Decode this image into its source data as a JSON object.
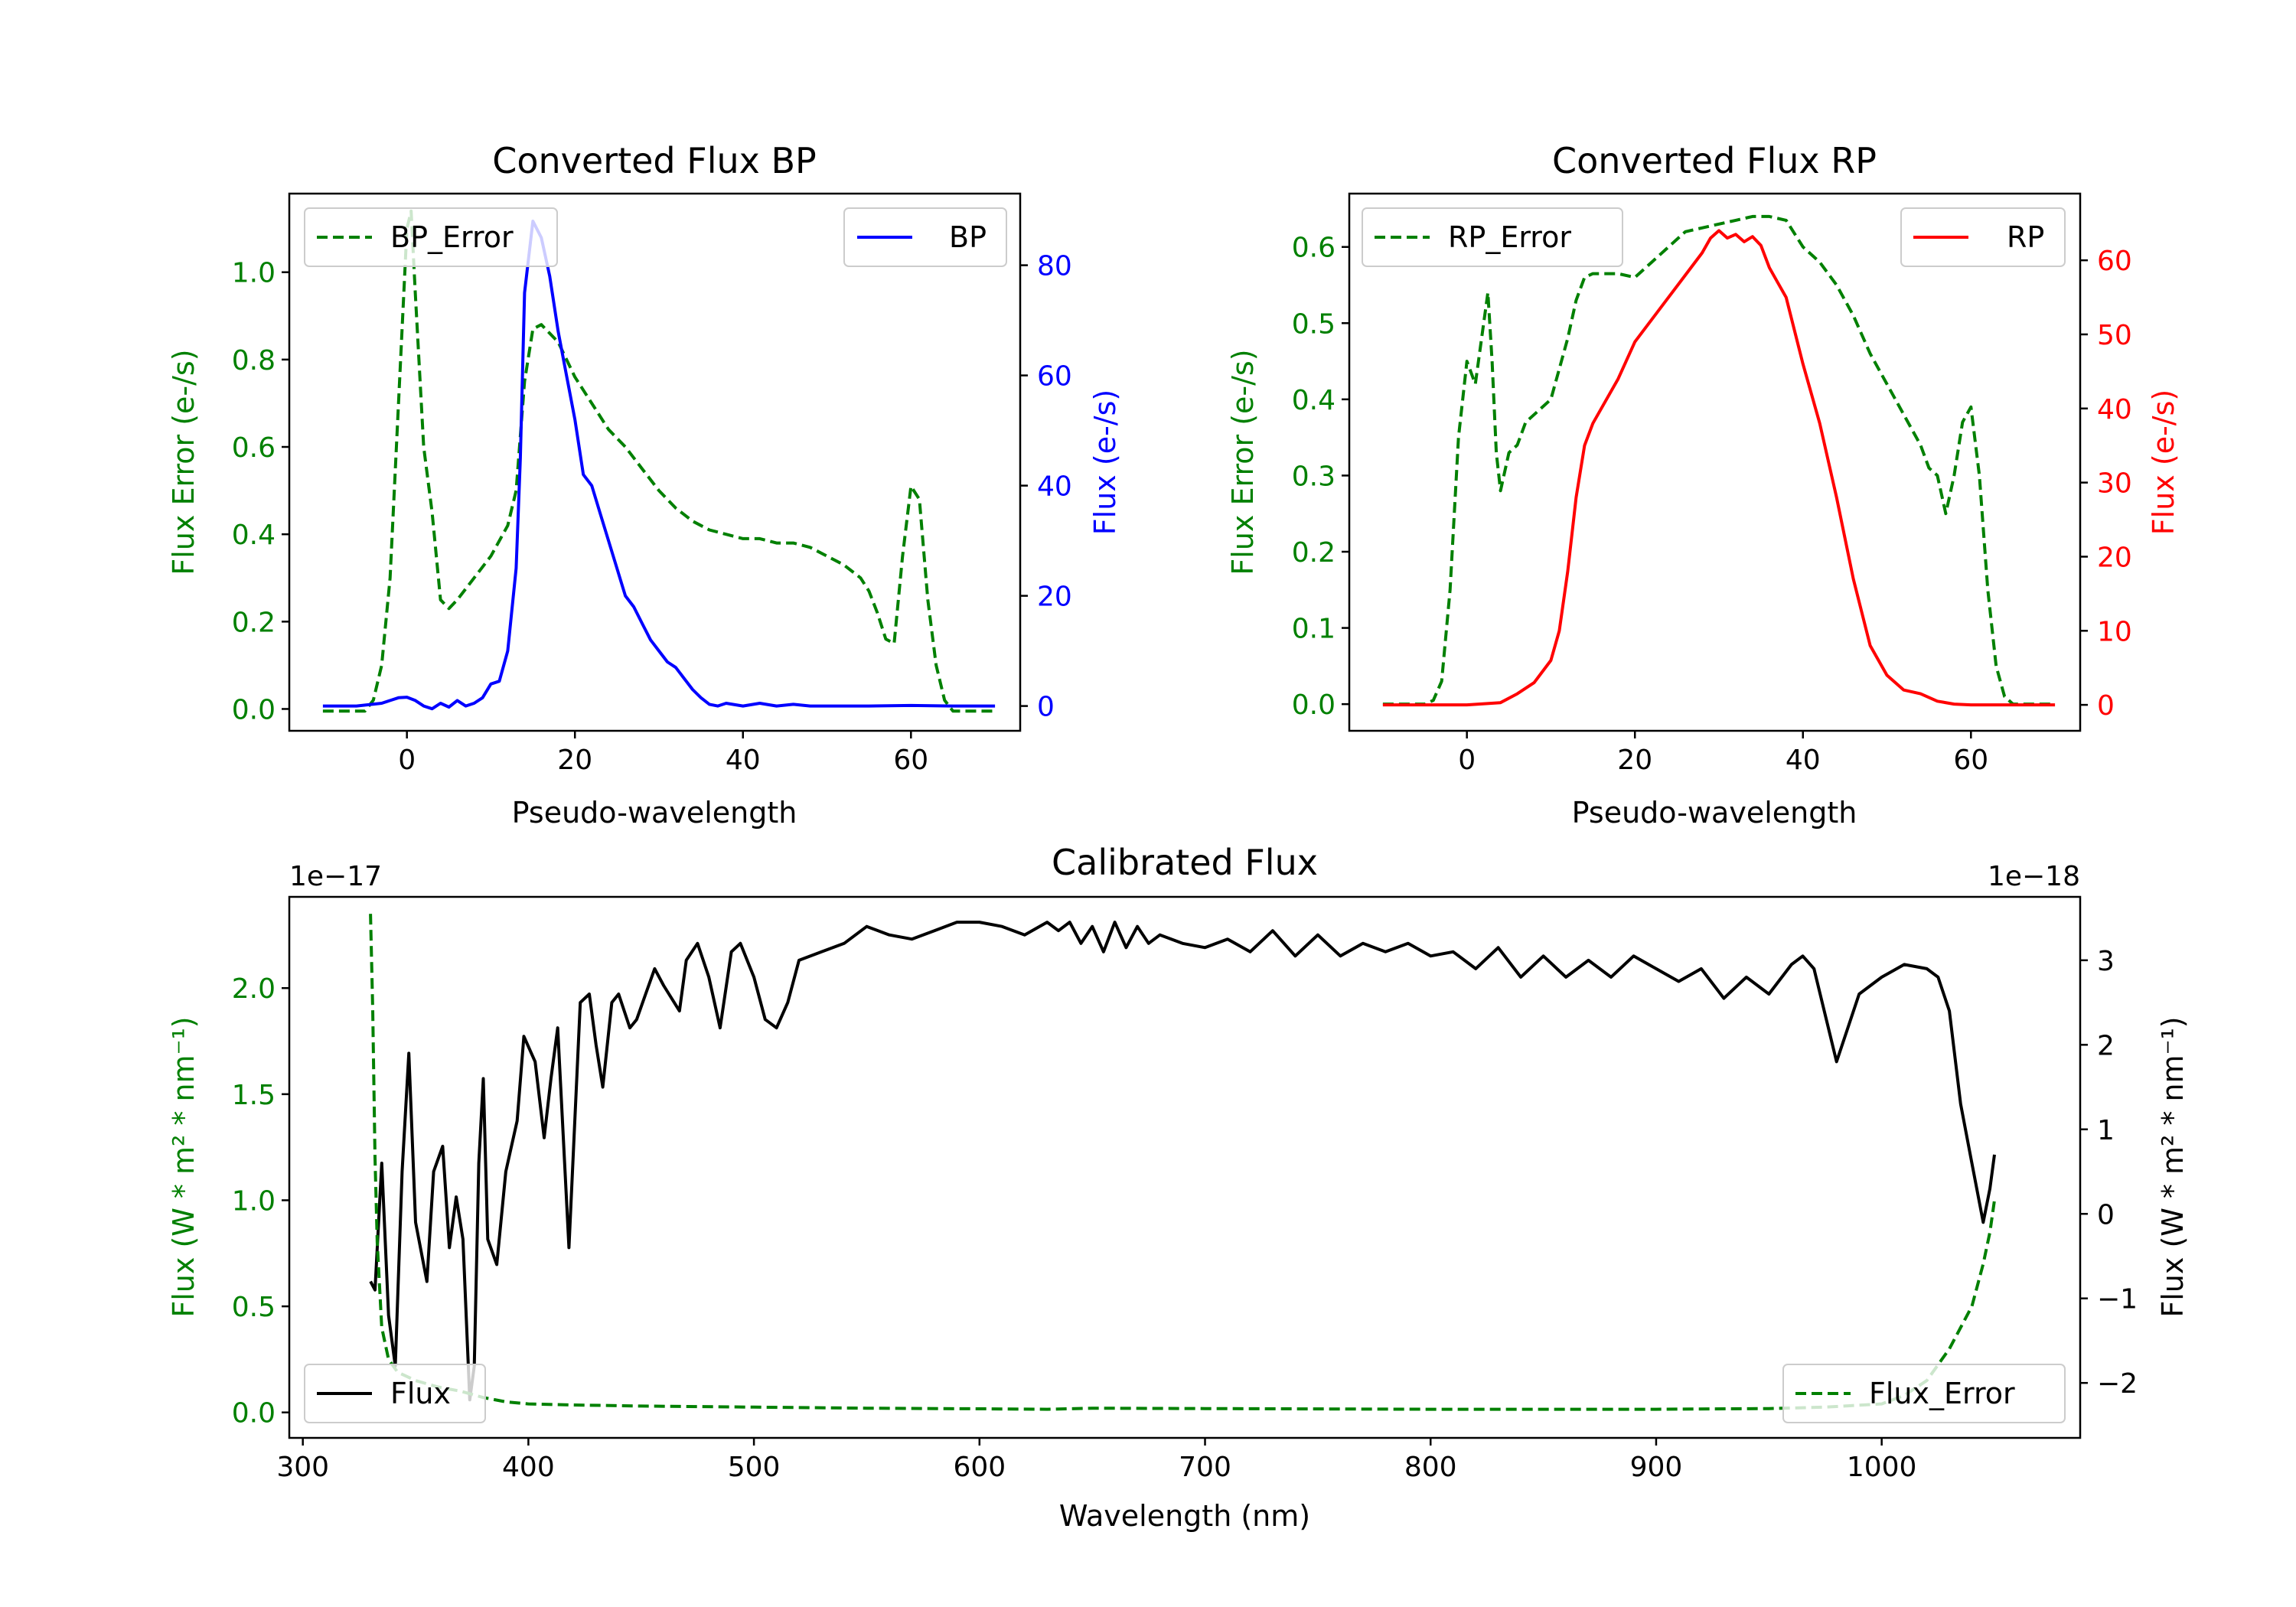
{
  "chart_data": [
    {
      "type": "line",
      "title": "Converted Flux BP",
      "xlabel": "Pseudo-wavelength",
      "xlim": [
        -14,
        73
      ],
      "xticks": [
        "0",
        "20",
        "40",
        "60"
      ],
      "left_axis": {
        "label": "Flux Error (e-/s)",
        "color": "#008000",
        "lim": [
          -0.05,
          1.18
        ],
        "ticks": [
          "0.0",
          "0.2",
          "0.4",
          "0.6",
          "0.8",
          "1.0"
        ]
      },
      "right_axis": {
        "label": "Flux (e-/s)",
        "color": "#0000ff",
        "lim": [
          -4.5,
          93
        ],
        "ticks": [
          "0",
          "20",
          "40",
          "60",
          "80"
        ]
      },
      "legend_left": "BP_Error",
      "legend_right": "BP",
      "series": [
        {
          "name": "BP_Error",
          "axis": "left",
          "style": "dashed",
          "color": "#008000",
          "x": [
            -10,
            -5,
            -4,
            -3,
            -2,
            -1,
            0,
            0.5,
            1,
            2,
            3,
            4,
            5,
            6,
            8,
            10,
            12,
            13,
            14,
            15,
            16,
            18,
            20,
            22,
            24,
            26,
            28,
            30,
            32,
            34,
            36,
            38,
            40,
            42,
            44,
            46,
            48,
            50,
            52,
            54,
            55,
            56,
            57,
            58,
            59,
            60,
            61,
            62,
            63,
            64,
            65,
            66,
            68,
            70
          ],
          "y": [
            -0.005,
            -0.005,
            0.02,
            0.1,
            0.3,
            0.7,
            1.1,
            1.14,
            0.95,
            0.6,
            0.45,
            0.25,
            0.23,
            0.25,
            0.3,
            0.35,
            0.42,
            0.5,
            0.75,
            0.87,
            0.88,
            0.84,
            0.76,
            0.7,
            0.64,
            0.6,
            0.55,
            0.5,
            0.46,
            0.43,
            0.41,
            0.4,
            0.39,
            0.39,
            0.38,
            0.38,
            0.37,
            0.35,
            0.33,
            0.3,
            0.27,
            0.22,
            0.16,
            0.15,
            0.35,
            0.51,
            0.48,
            0.25,
            0.1,
            0.02,
            -0.005,
            -0.005,
            -0.005,
            -0.005
          ]
        },
        {
          "name": "BP",
          "axis": "right",
          "style": "solid",
          "color": "#0000ff",
          "x": [
            -10,
            -6,
            -3,
            -1,
            0,
            1,
            2,
            3,
            4,
            5,
            6,
            7,
            8,
            9,
            10,
            11,
            12,
            13,
            13.5,
            14,
            15,
            16,
            17,
            18,
            19,
            20,
            21,
            22,
            23,
            24,
            25,
            26,
            27,
            28,
            29,
            30,
            31,
            32,
            33,
            34,
            35,
            36,
            37,
            38,
            40,
            42,
            44,
            46,
            48,
            50,
            55,
            60,
            65,
            70
          ],
          "y": [
            0,
            0,
            0.5,
            1.5,
            1.6,
            1,
            0,
            -0.5,
            0.5,
            -0.2,
            1,
            0,
            0.5,
            1.5,
            4,
            4.5,
            10,
            25,
            45,
            75,
            88,
            85,
            78,
            68,
            60,
            52,
            42,
            40,
            35,
            30,
            25,
            20,
            18,
            15,
            12,
            10,
            8,
            7,
            5,
            3,
            1.5,
            0.3,
            0,
            0.5,
            0,
            0.5,
            0,
            0.3,
            0,
            0,
            0,
            0.1,
            0,
            0
          ]
        }
      ]
    },
    {
      "type": "line",
      "title": "Converted Flux RP",
      "xlabel": "Pseudo-wavelength",
      "xlim": [
        -14,
        73
      ],
      "xticks": [
        "0",
        "20",
        "40",
        "60"
      ],
      "left_axis": {
        "label": "Flux Error (e-/s)",
        "color": "#008000",
        "lim": [
          -0.035,
          0.67
        ],
        "ticks": [
          "0.0",
          "0.1",
          "0.2",
          "0.3",
          "0.4",
          "0.5",
          "0.6"
        ]
      },
      "right_axis": {
        "label": "Flux (e-/s)",
        "color": "#ff0000",
        "lim": [
          -3.5,
          69
        ],
        "ticks": [
          "0",
          "10",
          "20",
          "30",
          "40",
          "50",
          "60"
        ]
      },
      "legend_left": "RP_Error",
      "legend_right": "RP",
      "series": [
        {
          "name": "RP_Error",
          "axis": "left",
          "style": "dashed",
          "color": "#008000",
          "x": [
            -10,
            -5,
            -4,
            -3,
            -2,
            -1,
            0,
            1,
            2,
            2.5,
            3,
            3.5,
            4,
            5,
            6,
            7,
            8,
            10,
            12,
            13,
            14,
            15,
            16,
            18,
            20,
            22,
            24,
            26,
            28,
            30,
            32,
            34,
            36,
            38,
            40,
            42,
            44,
            46,
            48,
            50,
            52,
            54,
            55,
            56,
            57,
            58,
            59,
            60,
            61,
            62,
            63,
            64,
            65,
            70
          ],
          "y": [
            0,
            0,
            0.005,
            0.03,
            0.15,
            0.35,
            0.45,
            0.42,
            0.5,
            0.54,
            0.45,
            0.33,
            0.28,
            0.33,
            0.34,
            0.37,
            0.38,
            0.4,
            0.48,
            0.53,
            0.56,
            0.565,
            0.565,
            0.565,
            0.56,
            0.58,
            0.6,
            0.62,
            0.625,
            0.63,
            0.635,
            0.64,
            0.64,
            0.635,
            0.6,
            0.58,
            0.55,
            0.51,
            0.46,
            0.42,
            0.38,
            0.34,
            0.31,
            0.3,
            0.25,
            0.3,
            0.37,
            0.39,
            0.3,
            0.15,
            0.05,
            0.01,
            0,
            0
          ]
        },
        {
          "name": "RP",
          "axis": "right",
          "style": "solid",
          "color": "#ff0000",
          "x": [
            -10,
            0,
            4,
            6,
            8,
            10,
            11,
            12,
            13,
            14,
            15,
            16,
            18,
            20,
            22,
            24,
            26,
            28,
            29,
            30,
            31,
            32,
            33,
            34,
            35,
            36,
            37,
            38,
            40,
            42,
            44,
            46,
            48,
            50,
            52,
            54,
            56,
            58,
            60,
            62,
            70
          ],
          "y": [
            0,
            0,
            0.3,
            1.5,
            3,
            6,
            10,
            18,
            28,
            35,
            38,
            40,
            44,
            49,
            52,
            55,
            58,
            61,
            63,
            64,
            63,
            63.5,
            62.5,
            63.2,
            62,
            59,
            57,
            55,
            46,
            38,
            28,
            17,
            8,
            4,
            2,
            1.5,
            0.5,
            0.1,
            0,
            0,
            0
          ]
        }
      ]
    },
    {
      "type": "line",
      "title": "Calibrated Flux",
      "xlabel": "Wavelength (nm)",
      "xlim": [
        294,
        1088
      ],
      "xticks": [
        "300",
        "400",
        "500",
        "600",
        "700",
        "800",
        "900",
        "1000"
      ],
      "left_axis": {
        "label": "Flux (W * m² * nm⁻¹)",
        "color": "#008000",
        "lim": [
          -0.12,
          2.43
        ],
        "ticks": [
          "0.0",
          "0.5",
          "1.0",
          "1.5",
          "2.0"
        ],
        "offset_text": "1e−17"
      },
      "right_axis": {
        "label": "Flux (W * m² * nm⁻¹)",
        "color": "#000000",
        "lim": [
          -2.65,
          3.75
        ],
        "ticks": [
          "−2",
          "−1",
          "0",
          "1",
          "2",
          "3"
        ],
        "offset_text": "1e−18"
      },
      "legend_left": "Flux",
      "legend_right": "Flux_Error",
      "series": [
        {
          "name": "Flux",
          "axis": "right",
          "style": "solid",
          "color": "#000000",
          "x": [
            330,
            332,
            335,
            338,
            341,
            344,
            347,
            350,
            355,
            358,
            362,
            365,
            368,
            371,
            374,
            376,
            378,
            380,
            382,
            386,
            390,
            395,
            398,
            403,
            407,
            410,
            413,
            418,
            423,
            427,
            430,
            433,
            437,
            440,
            445,
            448,
            452,
            456,
            460,
            467,
            470,
            475,
            480,
            485,
            490,
            494,
            500,
            505,
            510,
            515,
            520,
            530,
            540,
            550,
            560,
            570,
            580,
            590,
            600,
            610,
            620,
            630,
            635,
            640,
            645,
            650,
            655,
            660,
            665,
            670,
            675,
            680,
            690,
            700,
            710,
            720,
            730,
            740,
            750,
            760,
            770,
            780,
            790,
            800,
            810,
            820,
            830,
            840,
            850,
            860,
            870,
            880,
            890,
            900,
            910,
            920,
            930,
            940,
            950,
            960,
            965,
            970,
            980,
            990,
            1000,
            1010,
            1020,
            1025,
            1030,
            1035,
            1040,
            1045,
            1048,
            1050
          ],
          "y": [
            -0.8,
            -0.9,
            0.6,
            -1.2,
            -1.8,
            0.5,
            1.9,
            -0.1,
            -0.8,
            0.5,
            0.8,
            -0.4,
            0.2,
            -0.3,
            -2.2,
            -1.8,
            0.6,
            1.6,
            -0.3,
            -0.6,
            0.5,
            1.1,
            2.1,
            1.8,
            0.9,
            1.6,
            2.2,
            -0.4,
            2.5,
            2.6,
            2.0,
            1.5,
            2.5,
            2.6,
            2.2,
            2.3,
            2.6,
            2.9,
            2.7,
            2.4,
            3.0,
            3.2,
            2.8,
            2.2,
            3.1,
            3.2,
            2.8,
            2.3,
            2.2,
            2.5,
            3.0,
            3.1,
            3.2,
            3.4,
            3.3,
            3.25,
            3.35,
            3.45,
            3.45,
            3.4,
            3.3,
            3.45,
            3.35,
            3.45,
            3.2,
            3.4,
            3.1,
            3.45,
            3.15,
            3.4,
            3.2,
            3.3,
            3.2,
            3.15,
            3.25,
            3.1,
            3.35,
            3.05,
            3.3,
            3.05,
            3.2,
            3.1,
            3.2,
            3.05,
            3.1,
            2.9,
            3.15,
            2.8,
            3.05,
            2.8,
            3.0,
            2.8,
            3.05,
            2.9,
            2.75,
            2.9,
            2.55,
            2.8,
            2.6,
            2.95,
            3.05,
            2.9,
            1.8,
            2.6,
            2.8,
            2.95,
            2.9,
            2.8,
            2.4,
            1.3,
            0.6,
            -0.1,
            0.3,
            0.7
          ]
        },
        {
          "name": "Flux_Error",
          "axis": "left",
          "style": "dashed",
          "color": "#008000",
          "x": [
            330,
            331,
            332,
            333,
            335,
            338,
            342,
            350,
            360,
            370,
            380,
            390,
            400,
            420,
            450,
            500,
            550,
            600,
            630,
            650,
            700,
            800,
            900,
            950,
            975,
            1000,
            1010,
            1020,
            1030,
            1035,
            1040,
            1045,
            1048,
            1050
          ],
          "y": [
            2.35,
            1.9,
            1.2,
            0.8,
            0.4,
            0.25,
            0.19,
            0.15,
            0.12,
            0.1,
            0.07,
            0.05,
            0.04,
            0.035,
            0.03,
            0.025,
            0.02,
            0.017,
            0.015,
            0.02,
            0.018,
            0.015,
            0.015,
            0.018,
            0.025,
            0.04,
            0.08,
            0.15,
            0.3,
            0.4,
            0.5,
            0.7,
            0.85,
            1.0
          ]
        }
      ]
    }
  ]
}
